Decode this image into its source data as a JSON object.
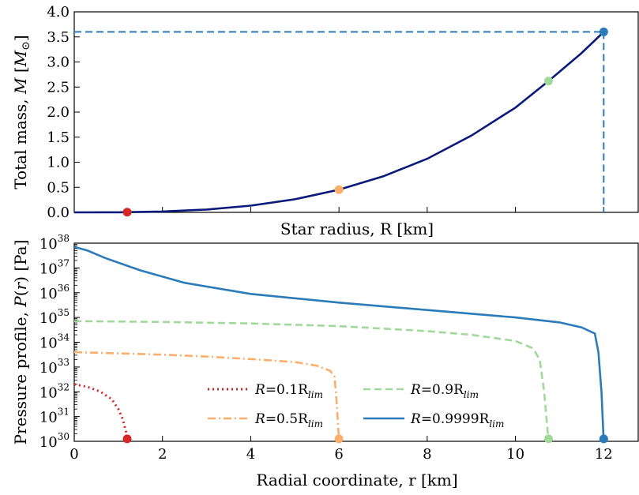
{
  "chart_data": [
    {
      "type": "line",
      "xlabel": "Star radius, R [km]",
      "ylabel": "Total mass, M [M⊙]",
      "xlim": [
        0,
        12.8
      ],
      "ylim": [
        0,
        4.0
      ],
      "yticks": [
        "0.0",
        "0.5",
        "1.0",
        "1.5",
        "2.0",
        "2.5",
        "3.0",
        "3.5",
        "4.0"
      ],
      "xticks_unlabeled": [
        2,
        4,
        6,
        8,
        10,
        12
      ],
      "series": [
        {
          "color": "#0b1a7a",
          "style": "solid",
          "x": [
            0,
            1,
            2,
            3,
            4,
            5,
            6,
            7,
            8,
            9,
            10,
            10.75,
            11.5,
            12.0
          ],
          "y": [
            0,
            0.0021,
            0.017,
            0.057,
            0.134,
            0.262,
            0.452,
            0.718,
            1.07,
            1.53,
            2.09,
            2.62,
            3.18,
            3.6
          ]
        }
      ],
      "markers": [
        {
          "x": 1.2,
          "y": 0.0036,
          "color": "#d62728"
        },
        {
          "x": 6.0,
          "y": 0.452,
          "color": "#fdae6b"
        },
        {
          "x": 10.75,
          "y": 2.62,
          "color": "#a1d99b"
        },
        {
          "x": 12.0,
          "y": 3.6,
          "color": "#2b7bba"
        }
      ],
      "reference_lines": {
        "x": 12.0,
        "y": 3.6,
        "color": "#2b7bba",
        "style": "dashed"
      }
    },
    {
      "type": "line",
      "xlabel": "Radial coordinate, r [km]",
      "ylabel": "Pressure profile, P(r) [Pa]",
      "yscale": "log",
      "xlim": [
        0,
        12.8
      ],
      "ylim": [
        1e+30,
        1e+38
      ],
      "xticks": [
        "0",
        "2",
        "4",
        "6",
        "8",
        "10",
        "12"
      ],
      "ytick_exponents": [
        30,
        31,
        32,
        33,
        34,
        35,
        36,
        37,
        38
      ],
      "grid": false,
      "legend_position": "lower center",
      "series": [
        {
          "name": "R=0.1R_lim",
          "legend_main": "R=0.1R",
          "legend_sub": "lim",
          "color": "#d62728",
          "style": "dotted",
          "r": [
            0,
            0.3,
            0.6,
            0.85,
            1.0,
            1.1,
            1.17,
            1.2
          ],
          "log10P": [
            32.3,
            32.2,
            32.0,
            31.7,
            31.3,
            30.9,
            30.4,
            30.0
          ]
        },
        {
          "name": "R=0.5R_lim",
          "legend_main": "R=0.5R",
          "legend_sub": "lim",
          "color": "#fdae6b",
          "style": "dashdot",
          "r": [
            0,
            1,
            2,
            3,
            4,
            5,
            5.5,
            5.8,
            5.9,
            5.95,
            6.0
          ],
          "log10P": [
            33.6,
            33.55,
            33.5,
            33.42,
            33.32,
            33.2,
            33.05,
            32.85,
            32.6,
            31.5,
            30.0
          ]
        },
        {
          "name": "R=0.9R_lim",
          "legend_main": "R=0.9R",
          "legend_sub": "lim",
          "color": "#a1d99b",
          "style": "dashed",
          "r": [
            0,
            2,
            4,
            6,
            8,
            9,
            10,
            10.4,
            10.55,
            10.65,
            10.75
          ],
          "log10P": [
            34.85,
            34.82,
            34.76,
            34.65,
            34.45,
            34.3,
            34.05,
            33.75,
            33.3,
            32.0,
            30.0
          ]
        },
        {
          "name": "R=0.9999R_lim",
          "legend_main": "R=0.9999R",
          "legend_sub": "lim",
          "color": "#2b7bba",
          "style": "solid",
          "r": [
            0,
            0.3,
            0.7,
            1.5,
            2.5,
            4,
            6,
            8,
            10,
            11,
            11.5,
            11.8,
            11.88,
            11.95,
            12.0
          ],
          "log10P": [
            37.85,
            37.7,
            37.4,
            36.9,
            36.4,
            35.95,
            35.6,
            35.3,
            35.0,
            34.8,
            34.6,
            34.35,
            33.6,
            32.0,
            30.0
          ]
        }
      ],
      "markers": [
        {
          "x": 1.2,
          "y_log10": 30.1,
          "color": "#d62728"
        },
        {
          "x": 6.0,
          "y_log10": 30.1,
          "color": "#fdae6b"
        },
        {
          "x": 10.75,
          "y_log10": 30.1,
          "color": "#a1d99b"
        },
        {
          "x": 12.0,
          "y_log10": 30.1,
          "color": "#2b7bba"
        }
      ]
    }
  ]
}
